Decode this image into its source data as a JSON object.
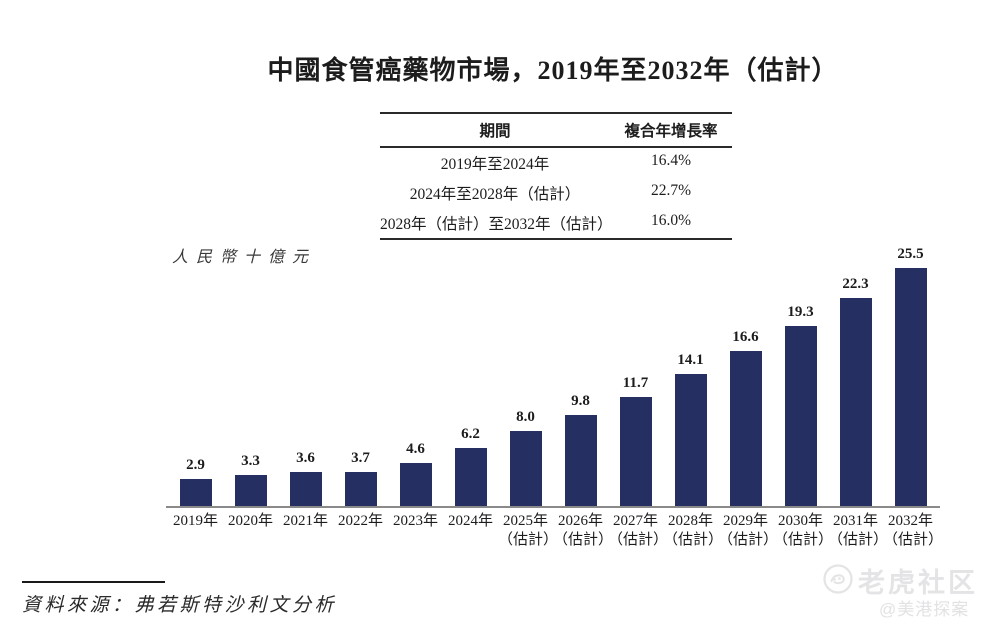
{
  "title": "中國食管癌藥物市場，2019年至2032年（估計）",
  "cagr_table": {
    "headers": [
      "期間",
      "複合年增長率"
    ],
    "rows": [
      {
        "period": "2019年至2024年",
        "cagr": "16.4%"
      },
      {
        "period": "2024年至2028年（估計）",
        "cagr": "22.7%"
      },
      {
        "period": "2028年（估計）至2032年（估計）",
        "cagr": "16.0%"
      }
    ]
  },
  "unit_label": "人民幣十億元",
  "chart_data": {
    "type": "bar",
    "title": "中國食管癌藥物市場，2019年至2032年（估計）",
    "ylabel": "人民幣十億元",
    "categories": [
      "2019年",
      "2020年",
      "2021年",
      "2022年",
      "2023年",
      "2024年",
      "2025年",
      "2026年",
      "2027年",
      "2028年",
      "2029年",
      "2030年",
      "2031年",
      "2032年"
    ],
    "estimate_note": "（估計）",
    "estimate_from_index": 6,
    "values": [
      2.9,
      3.3,
      3.6,
      3.7,
      4.6,
      6.2,
      8.0,
      9.8,
      11.7,
      14.1,
      16.6,
      19.3,
      22.3,
      25.5
    ],
    "value_labels": [
      "2.9",
      "3.3",
      "3.6",
      "3.7",
      "4.6",
      "6.2",
      "8.0",
      "9.8",
      "11.7",
      "14.1",
      "16.6",
      "19.3",
      "22.3",
      "25.5"
    ],
    "ylim": [
      0,
      27
    ],
    "grid": false,
    "legend": "none",
    "bar_color": "#262f62",
    "axis_line_color": "#8a8a8a"
  },
  "source": "資料來源：弗若斯特沙利文分析",
  "watermark": {
    "icon": "tiger-logo-icon",
    "logo_text": "老虎社区",
    "handle": "@美港探案"
  }
}
